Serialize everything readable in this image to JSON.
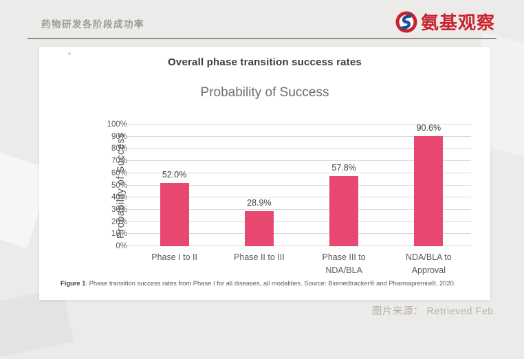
{
  "header": {
    "title": "药物研发各阶段成功率",
    "brand": {
      "name": "氨基观察",
      "color": "#c9232d"
    }
  },
  "figure": {
    "heading": "Overall phase transition success rates",
    "caption_prefix": "Figure 1",
    "caption_body": ": Phase transition success rates from Phase I for all diseases, all modalities. Source: Biomedtracker® and Pharmapremia®, 2020."
  },
  "footer": {
    "source_label": "图片来源：",
    "source_value": "Retrieved Feb"
  },
  "chart_data": {
    "type": "bar",
    "title": "Probability of Success",
    "categories": [
      "Phase I to II",
      "Phase II to III",
      "Phase III to\nNDA/BLA",
      "NDA/BLA to\nApproval"
    ],
    "values": [
      52.0,
      28.9,
      57.8,
      90.6
    ],
    "value_labels": [
      "52.0%",
      "28.9%",
      "57.8%",
      "90.6%"
    ],
    "xlabel": "",
    "ylabel": "Probability of Success",
    "ylim": [
      0,
      100
    ],
    "ytick_step": 10,
    "ytick_suffix": "%",
    "grid": true,
    "legend": "none",
    "bar_color": "#e8476f"
  }
}
